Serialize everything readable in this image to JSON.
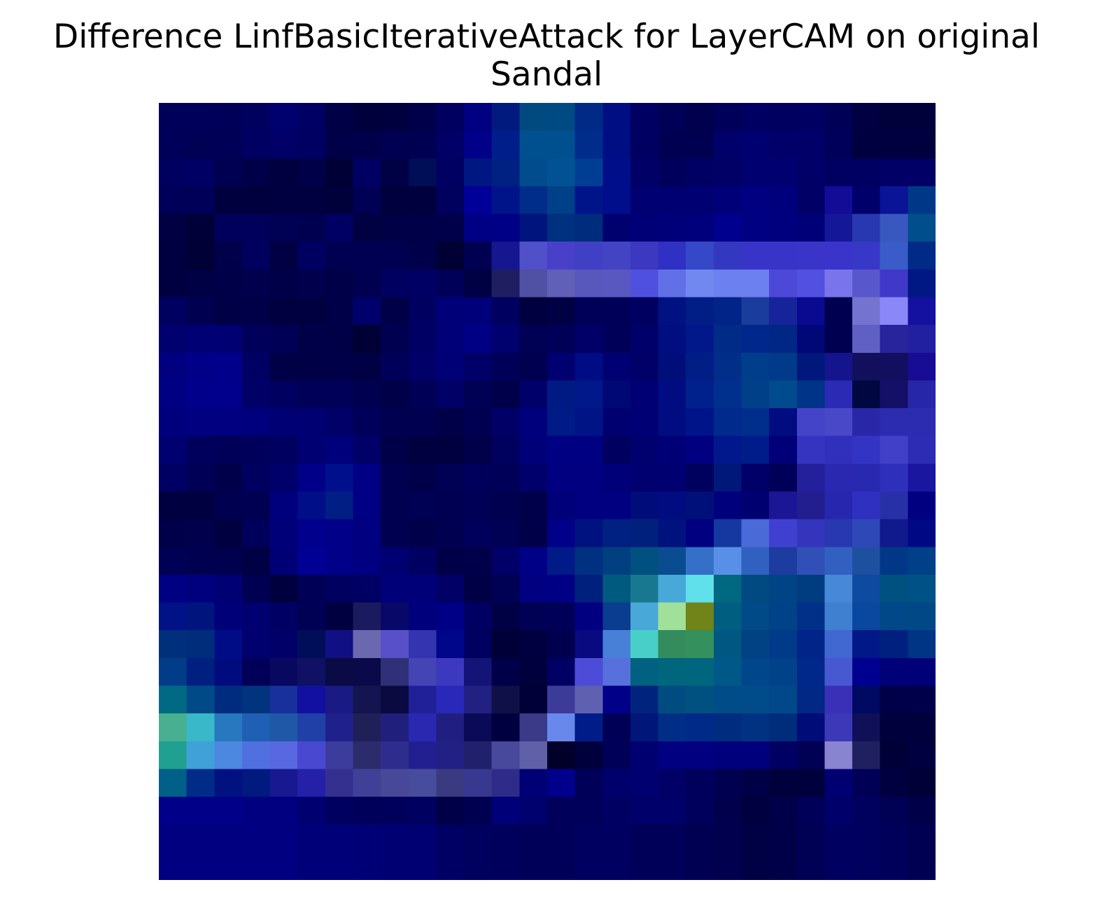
{
  "chart_data": {
    "type": "heatmap",
    "title_lines": [
      "Difference LinfBasicIterativeAttack for LayerCAM on original",
      "Sandal"
    ],
    "rows": 28,
    "cols": 28,
    "axes_visible": false,
    "cells": [
      [
        "#00005a",
        "#00005a",
        "#000058",
        "#00005e",
        "#00006e",
        "#000064",
        "#000046",
        "#00003c",
        "#00003e",
        "#00004a",
        "#000060",
        "#000080",
        "#001a7e",
        "#004a80",
        "#004a84",
        "#002a86",
        "#000e84",
        "#000062",
        "#000056",
        "#00004e",
        "#00005a",
        "#000062",
        "#000060",
        "#000062",
        "#000056",
        "#000042",
        "#00003a",
        "#00003a"
      ],
      [
        "#000058",
        "#000054",
        "#000056",
        "#000062",
        "#000068",
        "#000062",
        "#000048",
        "#00004a",
        "#000052",
        "#000052",
        "#000066",
        "#000088",
        "#001e8a",
        "#005090",
        "#005090",
        "#002c8c",
        "#000e84",
        "#000062",
        "#000052",
        "#000050",
        "#00006a",
        "#000070",
        "#000068",
        "#000068",
        "#00005a",
        "#000040",
        "#000040",
        "#000040"
      ],
      [
        "#000060",
        "#000064",
        "#000052",
        "#000048",
        "#000040",
        "#000048",
        "#000036",
        "#000064",
        "#000044",
        "#000e58",
        "#000062",
        "#001680",
        "#002082",
        "#004c8c",
        "#005294",
        "#003e94",
        "#000e8a",
        "#000066",
        "#00005c",
        "#000064",
        "#000066",
        "#000070",
        "#000070",
        "#000068",
        "#000062",
        "#000062",
        "#000066",
        "#000066"
      ],
      [
        "#000058",
        "#000058",
        "#00003e",
        "#00003e",
        "#000040",
        "#000040",
        "#00003a",
        "#000054",
        "#00003e",
        "#00003e",
        "#00005e",
        "#000098",
        "#00148a",
        "#002c8a",
        "#004088",
        "#00148a",
        "#000e8c",
        "#000072",
        "#000072",
        "#000072",
        "#000078",
        "#000080",
        "#00007c",
        "#000066",
        "#120c96",
        "#00006a",
        "#0a1496",
        "#003888"
      ],
      [
        "#000042",
        "#000038",
        "#00005c",
        "#00005c",
        "#000054",
        "#000050",
        "#000064",
        "#000042",
        "#000046",
        "#000048",
        "#00004a",
        "#000084",
        "#000086",
        "#00147e",
        "#003080",
        "#002c7e",
        "#00006e",
        "#000076",
        "#000078",
        "#00007c",
        "#00008e",
        "#000082",
        "#00007e",
        "#000078",
        "#141898",
        "#2838b0",
        "#3858c0",
        "#004e8c"
      ],
      [
        "#000040",
        "#000036",
        "#00004a",
        "#00005e",
        "#000042",
        "#000060",
        "#000052",
        "#000052",
        "#000052",
        "#00004a",
        "#000034",
        "#000052",
        "#161690",
        "#5050c8",
        "#4840c8",
        "#4040c4",
        "#4244c4",
        "#3c38c0",
        "#3030c4",
        "#3448c8",
        "#3438c0",
        "#3834c8",
        "#3834c8",
        "#3a34c8",
        "#3a34ca",
        "#3838c8",
        "#3a5cc8",
        "#002a88"
      ],
      [
        "#000040",
        "#000044",
        "#000048",
        "#00004c",
        "#000048",
        "#00004c",
        "#000048",
        "#000050",
        "#000060",
        "#000064",
        "#000058",
        "#000044",
        "#1e1e60",
        "#5050a4",
        "#6060b8",
        "#5858bc",
        "#5858c0",
        "#5050e0",
        "#6270e8",
        "#7088f0",
        "#6c80f0",
        "#6c80f0",
        "#4c48d8",
        "#5250e0",
        "#7a74ec",
        "#5858cc",
        "#4038c8",
        "#001884"
      ],
      [
        "#000060",
        "#000050",
        "#000046",
        "#000048",
        "#000040",
        "#000040",
        "#000048",
        "#00006c",
        "#000048",
        "#000060",
        "#000078",
        "#00007a",
        "#000060",
        "#000040",
        "#000044",
        "#000058",
        "#000058",
        "#000060",
        "#001282",
        "#001e86",
        "#002488",
        "#1a3c9c",
        "#16249a",
        "#0a0a90",
        "#000050",
        "#7474d0",
        "#8a88f8",
        "#1410a0"
      ],
      [
        "#00006e",
        "#000074",
        "#000072",
        "#00005a",
        "#000056",
        "#000048",
        "#000046",
        "#000036",
        "#000050",
        "#000064",
        "#000078",
        "#000084",
        "#00006e",
        "#000054",
        "#000058",
        "#000068",
        "#000058",
        "#00006a",
        "#000e80",
        "#00188a",
        "#002c88",
        "#00288c",
        "#002686",
        "#000878",
        "#000050",
        "#6060c4",
        "#28249c",
        "#2020a0"
      ],
      [
        "#000080",
        "#000088",
        "#00008a",
        "#000064",
        "#000046",
        "#000046",
        "#000048",
        "#000044",
        "#000058",
        "#000068",
        "#000076",
        "#000068",
        "#000058",
        "#000050",
        "#000070",
        "#000c84",
        "#000072",
        "#000068",
        "#000e7a",
        "#001e86",
        "#002e88",
        "#003e8c",
        "#003a88",
        "#00187c",
        "#14148c",
        "#12105c",
        "#120e60",
        "#180c94"
      ],
      [
        "#000082",
        "#00008a",
        "#00008c",
        "#000066",
        "#000060",
        "#000058",
        "#000058",
        "#000050",
        "#000048",
        "#000056",
        "#000066",
        "#000054",
        "#00004a",
        "#00006a",
        "#001a84",
        "#00188a",
        "#000876",
        "#000074",
        "#000c82",
        "#00208c",
        "#00308e",
        "#004088",
        "#004a8e",
        "#003488",
        "#2a2ab4",
        "#000840",
        "#141068",
        "#2626a8"
      ],
      [
        "#00007c",
        "#000080",
        "#000080",
        "#00007c",
        "#000074",
        "#000072",
        "#000068",
        "#00005a",
        "#000050",
        "#000050",
        "#000048",
        "#000052",
        "#000066",
        "#00007c",
        "#001a86",
        "#001486",
        "#000070",
        "#000074",
        "#000c80",
        "#00148a",
        "#002a8c",
        "#002e8c",
        "#000c80",
        "#4444c8",
        "#4848c8",
        "#2a26a8",
        "#2c2cb0",
        "#2c2cb0"
      ],
      [
        "#000070",
        "#00005c",
        "#000058",
        "#00005c",
        "#000060",
        "#000072",
        "#00007c",
        "#000068",
        "#000048",
        "#000040",
        "#000040",
        "#00004a",
        "#00005e",
        "#000078",
        "#000082",
        "#000082",
        "#000060",
        "#00006e",
        "#000076",
        "#000080",
        "#00188c",
        "#001c8a",
        "#000078",
        "#3434c0",
        "#3030bc",
        "#3434c4",
        "#4040c8",
        "#2c2cb4"
      ],
      [
        "#000064",
        "#000056",
        "#00004a",
        "#000060",
        "#00006a",
        "#000088",
        "#00108c",
        "#000084",
        "#000050",
        "#00004a",
        "#000054",
        "#00005c",
        "#000058",
        "#00006c",
        "#000080",
        "#000080",
        "#000078",
        "#000070",
        "#000070",
        "#00005e",
        "#00187a",
        "#000068",
        "#000058",
        "#24209c",
        "#2a28b0",
        "#2828b0",
        "#2e30bc",
        "#1a16a0"
      ],
      [
        "#000040",
        "#000040",
        "#000050",
        "#000052",
        "#00007c",
        "#000e88",
        "#001e84",
        "#000084",
        "#000050",
        "#000054",
        "#000052",
        "#000056",
        "#000050",
        "#00004a",
        "#000078",
        "#000080",
        "#000080",
        "#000c7a",
        "#000c80",
        "#00107a",
        "#00007c",
        "#000070",
        "#1a1694",
        "#221e90",
        "#2626ae",
        "#3030c0",
        "#2830a8",
        "#000080"
      ],
      [
        "#00004a",
        "#00004c",
        "#000040",
        "#00005c",
        "#000078",
        "#00008c",
        "#000088",
        "#000080",
        "#000050",
        "#00004a",
        "#000050",
        "#00005c",
        "#000054",
        "#000048",
        "#000088",
        "#001280",
        "#002082",
        "#00207e",
        "#00127e",
        "#000080",
        "#1438a0",
        "#4a6ad8",
        "#4040d0",
        "#3434bc",
        "#2838b0",
        "#2e48b8",
        "#101a8c",
        "#000884"
      ],
      [
        "#000054",
        "#000050",
        "#00004e",
        "#000044",
        "#000074",
        "#000094",
        "#000088",
        "#000080",
        "#000070",
        "#000062",
        "#000048",
        "#00004a",
        "#000068",
        "#000086",
        "#001a88",
        "#003080",
        "#004080",
        "#005080",
        "#0a4c90",
        "#3470c8",
        "#5890e8",
        "#3060c0",
        "#1c3ca0",
        "#3050b8",
        "#3260c0",
        "#1e50a0",
        "#003888",
        "#004088"
      ],
      [
        "#000082",
        "#00007e",
        "#000074",
        "#000052",
        "#00003e",
        "#000056",
        "#000060",
        "#000064",
        "#000078",
        "#000078",
        "#000066",
        "#000046",
        "#000054",
        "#000080",
        "#000084",
        "#00207e",
        "#005a80",
        "#187890",
        "#48a8d8",
        "#60e0ea",
        "#006880",
        "#004a82",
        "#004486",
        "#003c80",
        "#4888d8",
        "#0e4aa0",
        "#005080",
        "#005286"
      ],
      [
        "#001286",
        "#00147e",
        "#000078",
        "#000070",
        "#000064",
        "#000054",
        "#000040",
        "#1a1a5e",
        "#080868",
        "#00007c",
        "#000086",
        "#000062",
        "#000044",
        "#000054",
        "#000058",
        "#000080",
        "#0a3c90",
        "#48a8d8",
        "#a0e098",
        "#70841a",
        "#005e80",
        "#004a88",
        "#004288",
        "#003088",
        "#4080d0",
        "#0a48a0",
        "#004888",
        "#004886"
      ],
      [
        "#00307c",
        "#002c7c",
        "#000c86",
        "#00006e",
        "#000068",
        "#000e5a",
        "#101084",
        "#6c68b0",
        "#5850c8",
        "#3434b0",
        "#00068a",
        "#000060",
        "#000038",
        "#000040",
        "#00004e",
        "#0a0a80",
        "#4880d8",
        "#48d0c8",
        "#348c5c",
        "#34905c",
        "#005882",
        "#004284",
        "#003a88",
        "#002488",
        "#4068d0",
        "#001888",
        "#002080",
        "#003484"
      ],
      [
        "#003c88",
        "#002080",
        "#000c7e",
        "#000058",
        "#080860",
        "#101064",
        "#0a0a44",
        "#0a0a4a",
        "#303078",
        "#4444b4",
        "#3c38c0",
        "#141478",
        "#000048",
        "#00003c",
        "#000064",
        "#4c4cd8",
        "#5870dc",
        "#006280",
        "#00667e",
        "#006680",
        "#005888",
        "#00468a",
        "#00428a",
        "#00288a",
        "#4858d0",
        "#000090",
        "#000078",
        "#000078"
      ],
      [
        "#006a84",
        "#004a88",
        "#002c80",
        "#00347e",
        "#18309c",
        "#1210a0",
        "#1a1a84",
        "#141450",
        "#0a0a40",
        "#202098",
        "#2a28b8",
        "#222080",
        "#101048",
        "#000038",
        "#3c3c98",
        "#6060b0",
        "#000088",
        "#00247e",
        "#004c80",
        "#005080",
        "#004c88",
        "#004c8a",
        "#00488a",
        "#002884",
        "#3a30b8",
        "#000a62",
        "#000048",
        "#00004a"
      ],
      [
        "#48b090",
        "#38b8c8",
        "#2878c0",
        "#2060b4",
        "#2058a8",
        "#2040a8",
        "#20208c",
        "#202058",
        "#20207c",
        "#2a28b0",
        "#201e80",
        "#0a0a58",
        "#000040",
        "#3a3a88",
        "#6888ec",
        "#001c88",
        "#000056",
        "#001678",
        "#002e86",
        "#002a88",
        "#002c80",
        "#003282",
        "#002c7c",
        "#000c78",
        "#3c38b8",
        "#101058",
        "#00003c",
        "#00003c"
      ],
      [
        "#20a090",
        "#40a0d8",
        "#4c88e0",
        "#5070e0",
        "#5868e0",
        "#4848d0",
        "#3c3c9c",
        "#2c2c6c",
        "#2e2c8c",
        "#222090",
        "#222084",
        "#20206c",
        "#48489c",
        "#6060a8",
        "#00002a",
        "#00003c",
        "#000058",
        "#000070",
        "#000080",
        "#000080",
        "#00007c",
        "#00007c",
        "#000064",
        "#000054",
        "#8884d0",
        "#202060",
        "#000038",
        "#000040"
      ],
      [
        "#006088",
        "#002c88",
        "#001280",
        "#001a80",
        "#181890",
        "#2420a8",
        "#343090",
        "#404098",
        "#484898",
        "#484c9c",
        "#3a3a80",
        "#383890",
        "#2e2c88",
        "#000074",
        "#00008c",
        "#000058",
        "#00006c",
        "#000070",
        "#000066",
        "#00005c",
        "#000050",
        "#000046",
        "#00003c",
        "#00003c",
        "#000070",
        "#000056",
        "#000040",
        "#000036"
      ],
      [
        "#000088",
        "#000088",
        "#000088",
        "#000080",
        "#000080",
        "#000070",
        "#000060",
        "#00005a",
        "#00005c",
        "#000060",
        "#000048",
        "#000050",
        "#000078",
        "#00006e",
        "#00005a",
        "#00005a",
        "#000062",
        "#00006a",
        "#00006a",
        "#00005c",
        "#00004c",
        "#000040",
        "#00004a",
        "#000058",
        "#00006a",
        "#00005e",
        "#000054",
        "#000048"
      ],
      [
        "#000080",
        "#000080",
        "#000080",
        "#000080",
        "#000080",
        "#000078",
        "#000078",
        "#000076",
        "#000072",
        "#000072",
        "#000064",
        "#00005e",
        "#00005c",
        "#000058",
        "#000058",
        "#000060",
        "#000060",
        "#000058",
        "#000058",
        "#000052",
        "#00004e",
        "#000044",
        "#000048",
        "#000054",
        "#000060",
        "#00005e",
        "#00005a",
        "#000052"
      ],
      [
        "#000080",
        "#000080",
        "#000080",
        "#000080",
        "#000080",
        "#000078",
        "#000078",
        "#000076",
        "#000072",
        "#000072",
        "#000064",
        "#00005e",
        "#00005c",
        "#000058",
        "#000058",
        "#000060",
        "#000060",
        "#000058",
        "#000058",
        "#000052",
        "#00004e",
        "#000044",
        "#000048",
        "#000054",
        "#000060",
        "#00005e",
        "#00005a",
        "#000052"
      ]
    ]
  }
}
